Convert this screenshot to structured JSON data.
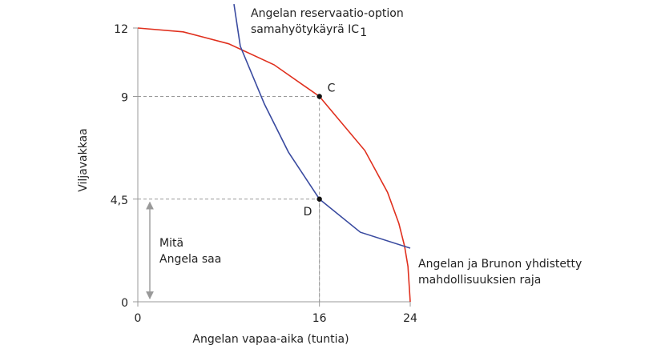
{
  "chart_data": {
    "type": "line",
    "x_label": "Angelan vapaa-aika (tuntia)",
    "y_label": "Viljavakkaa",
    "xlim": [
      0,
      24
    ],
    "ylim": [
      0,
      12
    ],
    "xticks": [
      0,
      16,
      24
    ],
    "yticks": [
      0,
      {
        "value": 4.5,
        "label": "4,5"
      },
      9,
      12
    ],
    "series": [
      {
        "color": "#e0301e",
        "x": [
          0,
          4,
          8,
          12,
          16,
          20,
          22,
          23,
          23.5,
          23.8,
          24
        ],
        "values": [
          12,
          11.83,
          11.31,
          10.39,
          9,
          6.63,
          4.8,
          3.43,
          2.44,
          1.55,
          0
        ]
      },
      {
        "color": "#3a4ba0",
        "x": [
          8.47,
          9.03,
          11.15,
          13.27,
          16,
          19.6,
          24
        ],
        "values": [
          13.05,
          11.2,
          8.67,
          6.56,
          4.5,
          3.05,
          2.35
        ]
      }
    ],
    "points": [
      {
        "label": "C",
        "x": 16,
        "y": 9
      },
      {
        "label": "D",
        "x": 16,
        "y": 4.5
      }
    ],
    "annotations": {
      "ic": {
        "lines": [
          "Angelan reservaatio-option",
          "samahyötykäyrä IC"
        ],
        "subscript": "1"
      },
      "frontier": [
        "Angelan ja Brunon yhdistetty",
        "mahdollisuuksien raja"
      ],
      "share": [
        "Mitä",
        "Angela saa"
      ]
    }
  }
}
